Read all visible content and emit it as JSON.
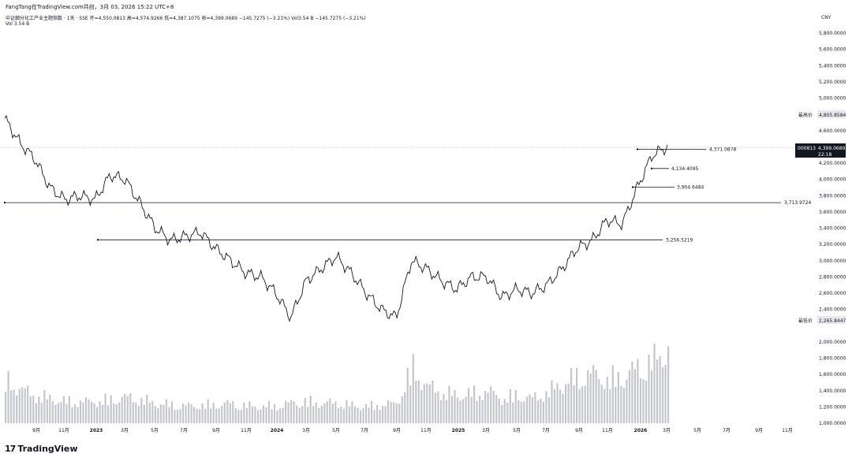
{
  "header": {
    "publisher": "FangTang在TradingView.com共创，3月 03, 2026 15:22 UTC+8",
    "symbol_line": "中证细分化工产业主题指数 · 1天 · SSE",
    "open": "开=4,550.0813",
    "high": "高=4,574.9266",
    "low": "低=4,387.1075",
    "close": "收=4,399.0689",
    "change": "−145.7275 (−3.21%)",
    "volume_info": "Vol3.54 B −145.7275 (−3.21%)",
    "vol_label": "Vol",
    "vol_value": "3.54 B"
  },
  "currency": "CNY",
  "branding": {
    "logo_text": "TradingView",
    "logo_mark": "17"
  },
  "price_scale": {
    "ticks": [
      "5,800.0000",
      "5,600.0000",
      "5,400.0000",
      "5,200.0000",
      "5,000.0000",
      "4,600.0000",
      "4,200.0000",
      "4,000.0000",
      "3,800.0000",
      "3,600.0000",
      "3,400.0000",
      "3,200.0000",
      "3,000.0000",
      "2,800.0000",
      "2,600.0000",
      "2,400.0000",
      "2,000.0000",
      "1,800.0000",
      "1,600.0000",
      "1,400.0000",
      "1,200.0000",
      "1,000.0000"
    ],
    "high_label": "最高价",
    "high_value": "4,805.8584",
    "low_label": "最低价",
    "low_value": "2,265.8447",
    "symbol_tag": "000813",
    "last_price": "4,399.0689",
    "countdown": "22:18"
  },
  "time_axis": [
    "9月",
    "11月",
    "2023",
    "3月",
    "5月",
    "7月",
    "9月",
    "11月",
    "2024",
    "3月",
    "5月",
    "7月",
    "9月",
    "11月",
    "2025",
    "3月",
    "5月",
    "7月",
    "9月",
    "11月",
    "2026",
    "3月",
    "5月",
    "7月",
    "9月",
    "11月"
  ],
  "horizontal_levels": [
    {
      "label": "4,371.0878",
      "price": 4371.0878
    },
    {
      "label": "4,134.4095",
      "price": 4134.4095
    },
    {
      "label": "3,904.6484",
      "price": 3904.6484
    },
    {
      "label": "3,713.9724",
      "price": 3713.9724
    },
    {
      "label": "3,256.5219",
      "price": 3256.5219
    }
  ],
  "chart_data": {
    "type": "line",
    "title": "中证细分化工产业主题指数 · 1天 · SSE",
    "ylabel": "CNY",
    "ylim": [
      1000,
      5900
    ],
    "x": [
      "2022-07",
      "2022-08",
      "2022-09",
      "2022-10",
      "2022-11",
      "2022-12",
      "2023-01",
      "2023-02",
      "2023-03",
      "2023-04",
      "2023-05",
      "2023-06",
      "2023-07",
      "2023-08",
      "2023-09",
      "2023-10",
      "2023-11",
      "2023-12",
      "2024-01",
      "2024-02",
      "2024-03",
      "2024-04",
      "2024-05",
      "2024-06",
      "2024-07",
      "2024-08",
      "2024-09",
      "2024-10",
      "2024-11",
      "2024-12",
      "2025-01",
      "2025-02",
      "2025-03",
      "2025-04",
      "2025-05",
      "2025-06",
      "2025-07",
      "2025-08",
      "2025-09",
      "2025-10",
      "2025-11",
      "2025-12",
      "2026-01",
      "2026-02",
      "2026-03"
    ],
    "series": [
      {
        "values": [
          4750,
          4450,
          4250,
          3900,
          3750,
          3800,
          3750,
          4050,
          4000,
          3700,
          3400,
          3250,
          3300,
          3350,
          3150,
          3000,
          2850,
          2800,
          2600,
          2300,
          2750,
          2900,
          3050,
          2850,
          2600,
          2400,
          2300,
          3000,
          2900,
          2750,
          2650,
          2800,
          2800,
          2550,
          2650,
          2600,
          2700,
          2900,
          3150,
          3250,
          3500,
          3450,
          3900,
          4300,
          4400
        ]
      }
    ]
  },
  "volume_data": {
    "x": [
      "2022-07",
      "2022-08",
      "2022-09",
      "2022-10",
      "2022-11",
      "2022-12",
      "2023-01",
      "2023-02",
      "2023-03",
      "2023-04",
      "2023-05",
      "2023-06",
      "2023-07",
      "2023-08",
      "2023-09",
      "2023-10",
      "2023-11",
      "2023-12",
      "2024-01",
      "2024-02",
      "2024-03",
      "2024-04",
      "2024-05",
      "2024-06",
      "2024-07",
      "2024-08",
      "2024-09",
      "2024-10",
      "2024-11",
      "2024-12",
      "2025-01",
      "2025-02",
      "2025-03",
      "2025-04",
      "2025-05",
      "2025-06",
      "2025-07",
      "2025-08",
      "2025-09",
      "2025-10",
      "2025-11",
      "2025-12",
      "2026-01",
      "2026-02",
      "2026-03"
    ],
    "values": [
      1700,
      1550,
      1450,
      1400,
      1350,
      1350,
      1350,
      1380,
      1420,
      1380,
      1320,
      1300,
      1280,
      1290,
      1300,
      1320,
      1280,
      1270,
      1280,
      1330,
      1350,
      1320,
      1330,
      1290,
      1270,
      1300,
      1320,
      1900,
      1600,
      1500,
      1450,
      1480,
      1520,
      1400,
      1450,
      1400,
      1500,
      1650,
      1750,
      1800,
      1700,
      1750,
      1900,
      2000,
      2200
    ]
  }
}
